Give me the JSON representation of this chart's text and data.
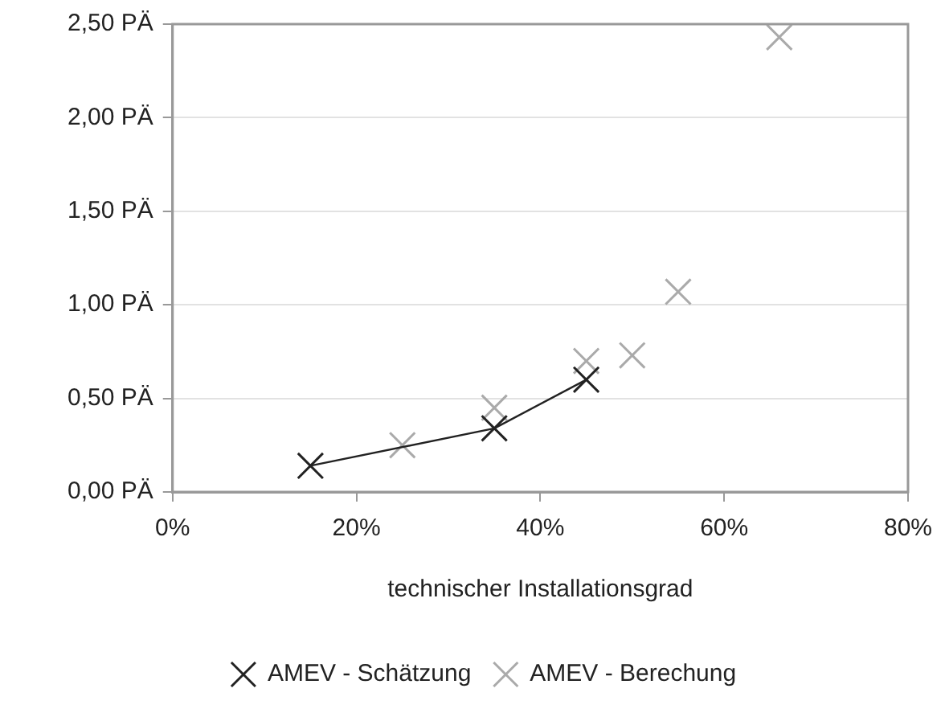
{
  "chart_data": {
    "type": "scatter",
    "xlabel": "technischer Installationsgrad",
    "xlim": [
      0,
      80
    ],
    "xticks": [
      {
        "value": 0,
        "label": "0%"
      },
      {
        "value": 20,
        "label": "20%"
      },
      {
        "value": 40,
        "label": "40%"
      },
      {
        "value": 60,
        "label": "60%"
      },
      {
        "value": 80,
        "label": "80%"
      }
    ],
    "ylim": [
      0,
      2.5
    ],
    "yticks": [
      {
        "value": 0,
        "label": "0,00 PÄ"
      },
      {
        "value": 0.5,
        "label": "0,50 PÄ"
      },
      {
        "value": 1,
        "label": "1,00 PÄ"
      },
      {
        "value": 1.5,
        "label": "1,50 PÄ"
      },
      {
        "value": 2,
        "label": "2,00 PÄ"
      },
      {
        "value": 2.5,
        "label": "2,50 PÄ"
      }
    ],
    "grid": "y",
    "legend": "bottom",
    "marker": "cross",
    "series": [
      {
        "name": "AMEV - Schätzung",
        "type": "line",
        "line_style": "solid",
        "color": "#222222",
        "x": [
          15,
          35,
          45
        ],
        "values": [
          0.14,
          0.34,
          0.6
        ]
      },
      {
        "name": "AMEV - Berechung",
        "type": "scatter",
        "color": "#aaaaaa",
        "x": [
          25,
          35,
          45,
          50,
          55,
          66
        ],
        "values": [
          0.25,
          0.45,
          0.7,
          0.73,
          1.07,
          2.43
        ]
      }
    ]
  }
}
